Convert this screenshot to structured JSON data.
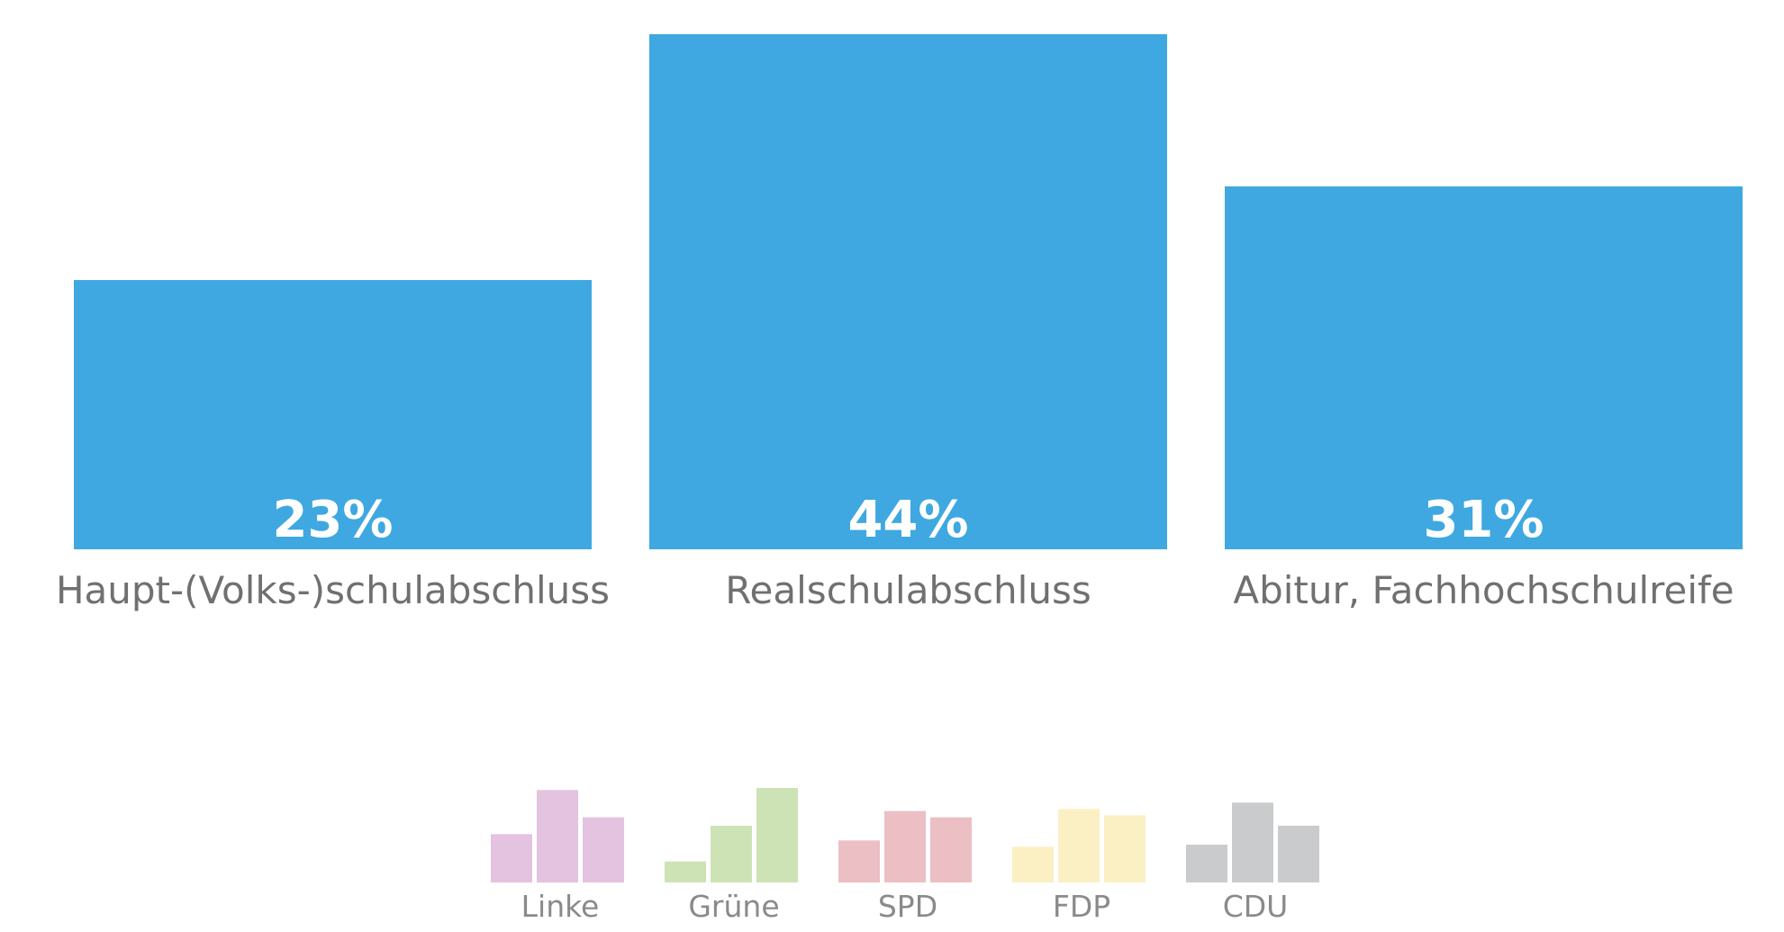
{
  "chart_data": {
    "type": "bar",
    "title": "",
    "xlabel": "",
    "ylabel": "",
    "categories": [
      "Haupt-(Volks-)schulabschluss",
      "Realschulabschluss",
      "Abitur, Fachhochschulreife"
    ],
    "values": [
      23,
      44,
      31
    ],
    "value_labels": [
      "23%",
      "44%",
      "31%"
    ],
    "ylim": [
      0,
      44
    ],
    "bar_color": "#3fa8e1",
    "grid": false
  },
  "party_selector": [
    {
      "label": "Linke",
      "color": "#e3c3df",
      "values": [
        23,
        44,
        31
      ]
    },
    {
      "label": "Grüne",
      "color": "#cde3b6",
      "values": [
        10,
        27,
        45
      ]
    },
    {
      "label": "SPD",
      "color": "#ecbfc4",
      "values": [
        20,
        34,
        31
      ]
    },
    {
      "label": "FDP",
      "color": "#fbf0c4",
      "values": [
        17,
        35,
        32
      ]
    },
    {
      "label": "CDU",
      "color": "#c9cbcc",
      "values": [
        18,
        38,
        27
      ]
    }
  ]
}
